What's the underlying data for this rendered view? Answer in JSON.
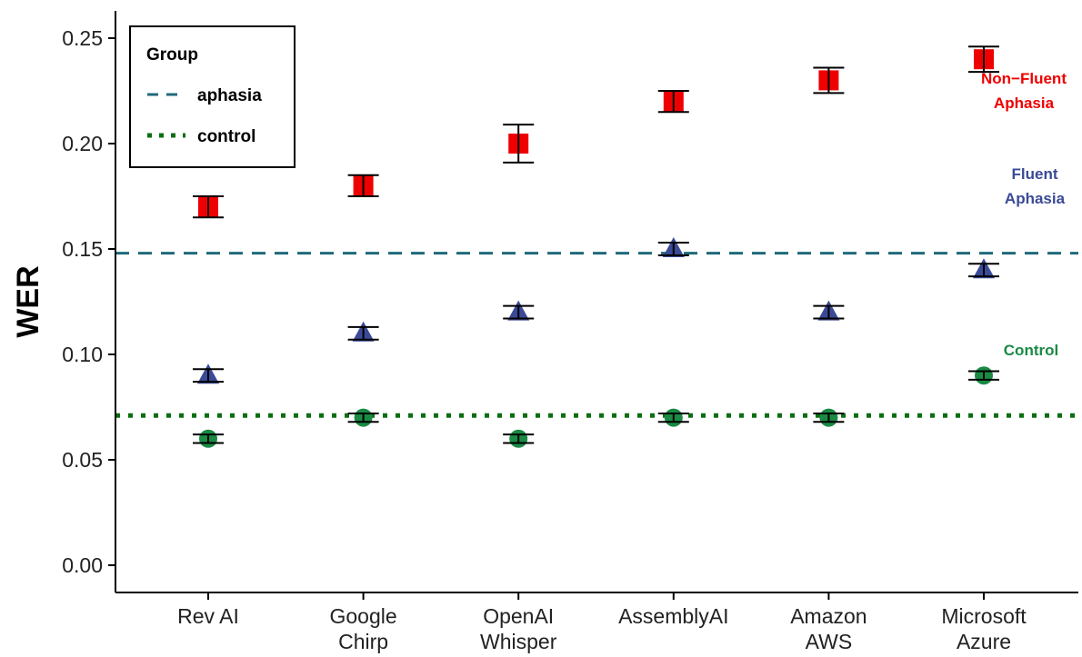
{
  "chart_data": {
    "type": "scatter",
    "ylabel": "WER",
    "xlabel": "",
    "categories": [
      "Rev AI",
      "Google\nChirp",
      "OpenAI\nWhisper",
      "AssemblyAI",
      "Amazon\nAWS",
      "Microsoft\nAzure"
    ],
    "ylim": [
      0,
      0.25
    ],
    "yticks": [
      "0.00",
      "0.05",
      "0.10",
      "0.15",
      "0.20",
      "0.25"
    ],
    "ytick_values": [
      0.0,
      0.05,
      0.1,
      0.15,
      0.2,
      0.25
    ],
    "grid": false,
    "series": [
      {
        "label_lines": [
          "Non−Fluent",
          "Aphasia"
        ],
        "marker": "square",
        "color": "#ee0000",
        "values": [
          0.17,
          0.18,
          0.2,
          0.22,
          0.23,
          0.24
        ],
        "error_low": [
          0.165,
          0.175,
          0.191,
          0.215,
          0.224,
          0.234
        ],
        "error_high": [
          0.175,
          0.185,
          0.209,
          0.225,
          0.236,
          0.246
        ]
      },
      {
        "label_lines": [
          "Fluent",
          "Aphasia"
        ],
        "marker": "triangle",
        "color": "#3b4a96",
        "values": [
          0.09,
          0.11,
          0.12,
          0.15,
          0.12,
          0.14
        ],
        "error_low": [
          0.087,
          0.107,
          0.117,
          0.147,
          0.117,
          0.137
        ],
        "error_high": [
          0.093,
          0.113,
          0.123,
          0.153,
          0.123,
          0.143
        ]
      },
      {
        "label_lines": [
          "Control"
        ],
        "marker": "circle",
        "color": "#1a8a44",
        "values": [
          0.06,
          0.07,
          0.06,
          0.07,
          0.07,
          0.09
        ],
        "error_low": [
          0.058,
          0.068,
          0.058,
          0.068,
          0.068,
          0.088
        ],
        "error_high": [
          0.062,
          0.072,
          0.062,
          0.072,
          0.072,
          0.092
        ]
      }
    ],
    "reference_lines": [
      {
        "name": "aphasia",
        "value": 0.148,
        "style": "longdash",
        "color": "#1f6a7a"
      },
      {
        "name": "control",
        "value": 0.071,
        "style": "dotted",
        "color": "#0b6e12"
      }
    ],
    "legend": {
      "title": "Group",
      "placement": "top-left",
      "entries": [
        {
          "label": "aphasia",
          "style": "longdash",
          "color": "#1f6a7a"
        },
        {
          "label": "control",
          "style": "dotted",
          "color": "#0b6e12"
        }
      ]
    }
  }
}
